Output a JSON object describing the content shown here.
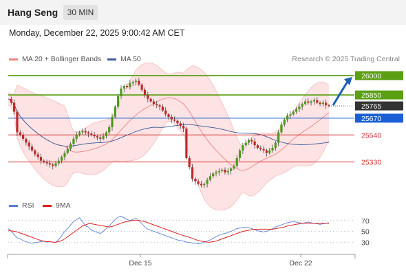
{
  "header": {
    "title": "Hang Seng",
    "timeframe": "30 MIN"
  },
  "datetime": "Monday, December 22, 2025 9:00:42 AM CET",
  "legend": [
    {
      "label": "MA 20 + Bollinger Bands",
      "color": "#f08080"
    },
    {
      "label": "MA 50",
      "color": "#3b5998"
    }
  ],
  "credit": "Research © 2025 Trading Central",
  "rsi_legend": [
    {
      "label": "RSI",
      "color": "#5b7fd6"
    },
    {
      "label": "9MA",
      "color": "#e02020"
    }
  ],
  "chart_data": [
    {
      "type": "candlestick",
      "ylim": [
        25120,
        26080
      ],
      "x_labels": [
        "Dec 15",
        "Dec 22"
      ],
      "levels": [
        {
          "value": "26000",
          "kind": "resistance",
          "color": "#5aa012"
        },
        {
          "value": "25850",
          "kind": "resistance",
          "color": "#5aa012"
        },
        {
          "value": "25765",
          "kind": "last price",
          "color": "#333333"
        },
        {
          "value": "25670",
          "kind": "pivot",
          "color": "#1a5fd6"
        },
        {
          "value": "25540",
          "kind": "support",
          "color": "#d03030"
        },
        {
          "value": "25330",
          "kind": "support",
          "color": "#d03030"
        }
      ],
      "close": [
        25820,
        25790,
        25720,
        25560,
        25540,
        25510,
        25480,
        25450,
        25420,
        25390,
        25370,
        25340,
        25330,
        25320,
        25310,
        25300,
        25320,
        25340,
        25370,
        25400,
        25430,
        25470,
        25510,
        25540,
        25560,
        25570,
        25560,
        25550,
        25540,
        25530,
        25520,
        25510,
        25530,
        25560,
        25600,
        25680,
        25760,
        25840,
        25900,
        25920,
        25910,
        25940,
        25950,
        25960,
        25930,
        25890,
        25850,
        25820,
        25800,
        25780,
        25770,
        25760,
        25730,
        25700,
        25680,
        25660,
        25650,
        25630,
        25610,
        25590,
        25360,
        25290,
        25200,
        25180,
        25160,
        25150,
        25160,
        25190,
        25220,
        25240,
        25250,
        25260,
        25270,
        25250,
        25260,
        25280,
        25300,
        25360,
        25420,
        25460,
        25480,
        25500,
        25490,
        25460,
        25440,
        25430,
        25420,
        25400,
        25420,
        25440,
        25480,
        25560,
        25620,
        25660,
        25690,
        25700,
        25720,
        25740,
        25760,
        25780,
        25800,
        25790,
        25800,
        25810,
        25790,
        25780,
        25790,
        25770,
        25765
      ]
    },
    {
      "type": "line",
      "ylim": [
        10,
        90
      ],
      "y_ticks": [
        70,
        50,
        30
      ],
      "series": [
        {
          "name": "RSI",
          "values": [
            55,
            50,
            44,
            38,
            36,
            33,
            31,
            29,
            28,
            29,
            30,
            31,
            32,
            30,
            31,
            30,
            30,
            35,
            42,
            50,
            55,
            62,
            68,
            72,
            75,
            68,
            60,
            58,
            52,
            50,
            48,
            46,
            50,
            55,
            60,
            66,
            72,
            76,
            78,
            75,
            72,
            70,
            72,
            74,
            70,
            64,
            58,
            54,
            52,
            50,
            48,
            46,
            44,
            42,
            40,
            38,
            36,
            34,
            33,
            32,
            30,
            30,
            28,
            28,
            27,
            28,
            30,
            32,
            34,
            37,
            40,
            43,
            45,
            46,
            48,
            50,
            52,
            55,
            56,
            57,
            58,
            57,
            55,
            53,
            51,
            50,
            49,
            50,
            52,
            55,
            58,
            60,
            62,
            64,
            66,
            67,
            68,
            67,
            66,
            65,
            66,
            67,
            66,
            65,
            64,
            63,
            64,
            65,
            66
          ]
        },
        {
          "name": "9MA",
          "values": [
            52,
            51,
            50,
            49,
            47,
            45,
            43,
            41,
            39,
            37,
            35,
            33,
            32,
            31,
            31,
            30,
            30,
            31,
            33,
            36,
            40,
            44,
            48,
            52,
            56,
            60,
            62,
            64,
            64,
            63,
            62,
            61,
            60,
            59,
            58,
            59,
            61,
            63,
            65,
            67,
            68,
            69,
            70,
            70,
            70,
            69,
            68,
            66,
            64,
            62,
            60,
            58,
            56,
            54,
            52,
            50,
            48,
            46,
            44,
            42,
            41,
            39,
            37,
            35,
            33,
            32,
            31,
            30,
            30,
            31,
            32,
            34,
            36,
            38,
            40,
            42,
            44,
            46,
            48,
            50,
            51,
            52,
            53,
            54,
            54,
            54,
            54,
            54,
            54,
            54,
            55,
            56,
            57,
            58,
            60,
            61,
            62,
            63,
            64,
            65,
            65,
            65,
            65,
            65,
            65,
            65,
            65,
            65,
            65
          ]
        }
      ]
    }
  ]
}
